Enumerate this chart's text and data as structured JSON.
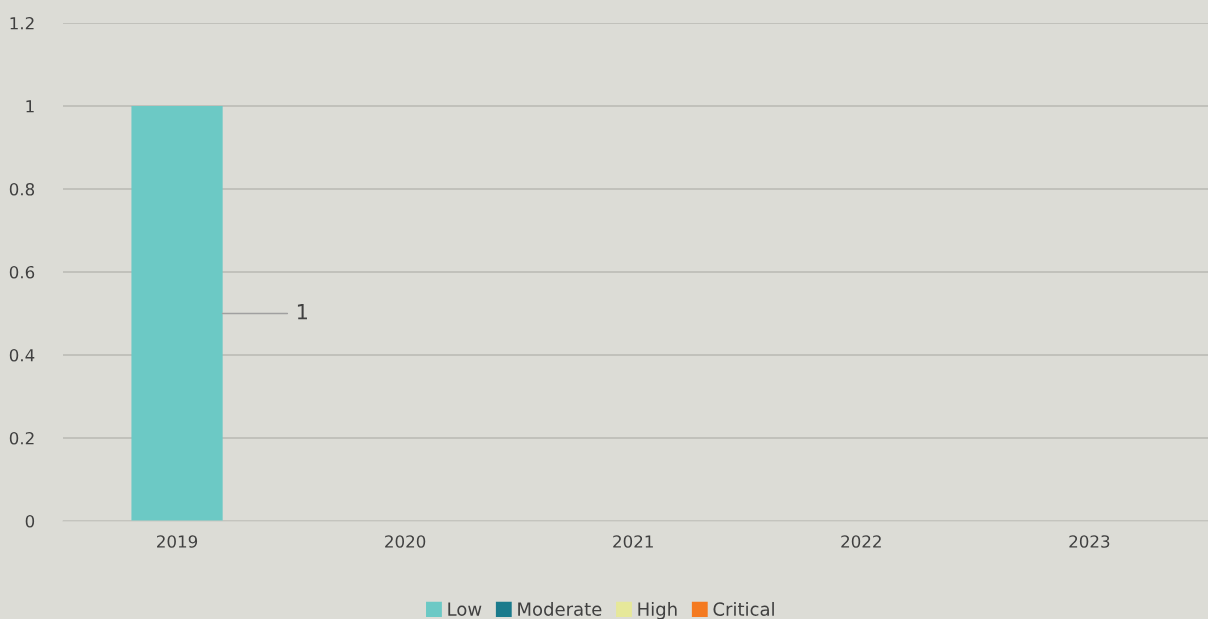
{
  "chart_data": {
    "type": "bar",
    "stacked": true,
    "categories": [
      "2019",
      "2020",
      "2021",
      "2022",
      "2023"
    ],
    "series": [
      {
        "name": "Low",
        "color": "#6cc9c5",
        "values": [
          1,
          0,
          0,
          0,
          0
        ],
        "value_labels": [
          "1",
          null,
          null,
          null,
          null
        ]
      },
      {
        "name": "Moderate",
        "color": "#1b7b8c",
        "values": [
          0,
          0,
          0,
          0,
          0
        ]
      },
      {
        "name": "High",
        "color": "#e6e89a",
        "values": [
          0,
          0,
          0,
          0,
          0
        ]
      },
      {
        "name": "Critical",
        "color": "#f47a20",
        "values": [
          0,
          0,
          0,
          0,
          0
        ]
      }
    ],
    "ylim": [
      0,
      1.2
    ],
    "yticks": [
      0,
      0.2,
      0.4,
      0.6,
      0.8,
      1,
      1.2
    ],
    "grid": "y",
    "legend": "bottom"
  }
}
